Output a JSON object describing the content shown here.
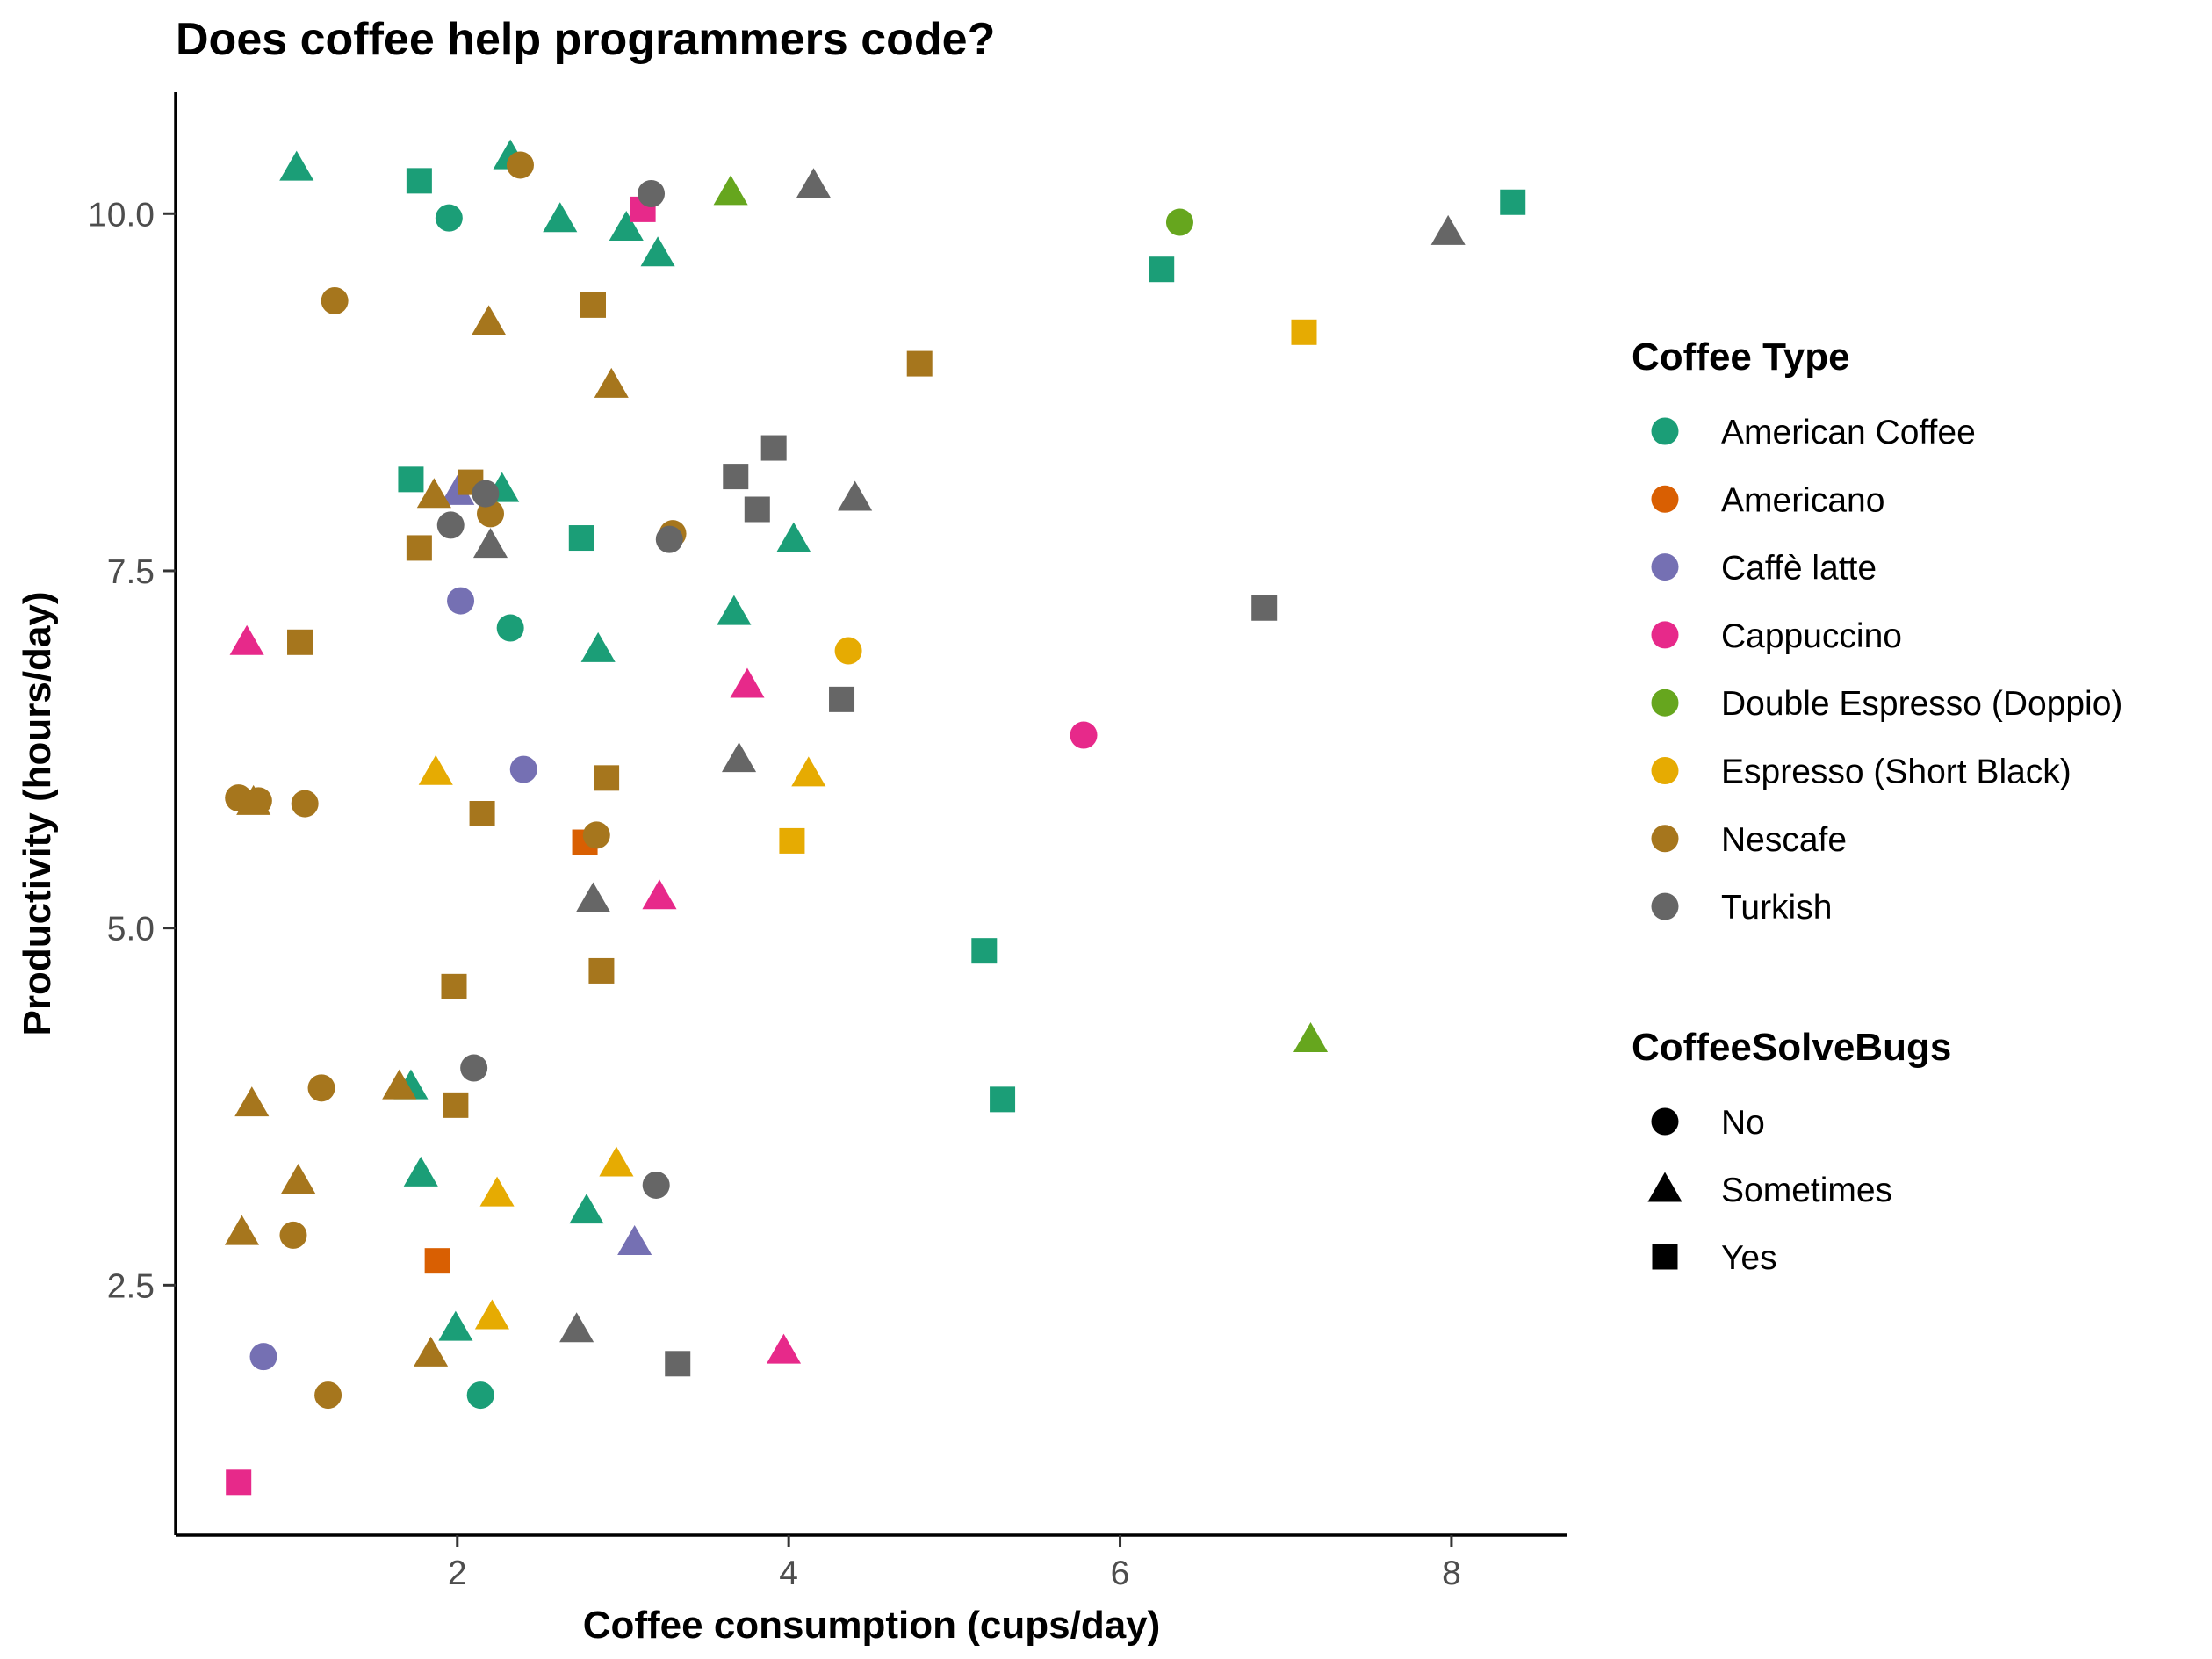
{
  "chart_data": {
    "type": "scatter",
    "title": "Does coffee help programmers code?",
    "xlabel": "Coffee consumption (cups/day)",
    "ylabel": "Productivity (hours/day)",
    "xlim": [
      0.3,
      8.7
    ],
    "ylim": [
      0.75,
      10.85
    ],
    "x_ticks": [
      {
        "value": 2,
        "label": "2"
      },
      {
        "value": 4,
        "label": "4"
      },
      {
        "value": 6,
        "label": "6"
      },
      {
        "value": 8,
        "label": "8"
      }
    ],
    "y_ticks": [
      {
        "value": 2.5,
        "label": "2.5"
      },
      {
        "value": 5.0,
        "label": "5.0"
      },
      {
        "value": 7.5,
        "label": "7.5"
      },
      {
        "value": 10.0,
        "label": "10.0"
      }
    ],
    "grid": false,
    "legend_placement": "right",
    "color_legend": {
      "title": "Coffee Type",
      "entries": [
        {
          "name": "American Coffee",
          "color": "#1b9e77"
        },
        {
          "name": "Americano",
          "color": "#d95f02"
        },
        {
          "name": "Caffè latte",
          "color": "#7570b3"
        },
        {
          "name": "Cappuccino",
          "color": "#e7298a"
        },
        {
          "name": "Double Espresso (Doppio)",
          "color": "#66a61e"
        },
        {
          "name": "Espresso (Short Black)",
          "color": "#e6ab02"
        },
        {
          "name": "Nescafe",
          "color": "#a6761d"
        },
        {
          "name": "Turkish",
          "color": "#666666"
        }
      ]
    },
    "shape_legend": {
      "title": "CoffeeSolveBugs",
      "entries": [
        {
          "name": "No",
          "shape": "circle"
        },
        {
          "name": "Sometimes",
          "shape": "triangle"
        },
        {
          "name": "Yes",
          "shape": "square"
        }
      ]
    },
    "series": [
      {
        "name": "American Coffee",
        "points": [
          [
            1.95,
            9.97,
            "No"
          ],
          [
            2.32,
            7.1,
            "No"
          ],
          [
            2.14,
            1.73,
            "No"
          ],
          [
            1.03,
            10.32,
            "Sometimes"
          ],
          [
            2.32,
            10.4,
            "Sometimes"
          ],
          [
            2.62,
            9.96,
            "Sometimes"
          ],
          [
            3.02,
            9.9,
            "Sometimes"
          ],
          [
            3.21,
            9.72,
            "Sometimes"
          ],
          [
            2.27,
            8.07,
            "Sometimes"
          ],
          [
            4.03,
            7.72,
            "Sometimes"
          ],
          [
            3.67,
            7.21,
            "Sometimes"
          ],
          [
            2.85,
            6.95,
            "Sometimes"
          ],
          [
            1.72,
            3.89,
            "Sometimes"
          ],
          [
            1.78,
            3.28,
            "Sometimes"
          ],
          [
            2.78,
            3.02,
            "Sometimes"
          ],
          [
            1.99,
            2.2,
            "Sometimes"
          ],
          [
            1.77,
            10.23,
            "Yes"
          ],
          [
            1.72,
            8.14,
            "Yes"
          ],
          [
            2.75,
            7.73,
            "Yes"
          ],
          [
            8.37,
            10.08,
            "Yes"
          ],
          [
            6.25,
            9.61,
            "Yes"
          ],
          [
            5.18,
            4.84,
            "Yes"
          ],
          [
            5.29,
            3.8,
            "Yes"
          ]
        ]
      },
      {
        "name": "Americano",
        "points": [
          [
            2.77,
            5.6,
            "Yes"
          ],
          [
            1.88,
            2.67,
            "Yes"
          ]
        ]
      },
      {
        "name": "Caffè latte",
        "points": [
          [
            2.02,
            7.29,
            "No"
          ],
          [
            2.4,
            6.11,
            "No"
          ],
          [
            0.83,
            2.0,
            "No"
          ],
          [
            2.0,
            8.05,
            "Sometimes"
          ],
          [
            3.07,
            2.8,
            "Sometimes"
          ]
        ]
      },
      {
        "name": "Cappuccino",
        "points": [
          [
            5.78,
            6.35,
            "No"
          ],
          [
            0.73,
            7.0,
            "Sometimes"
          ],
          [
            3.75,
            6.7,
            "Sometimes"
          ],
          [
            3.22,
            5.22,
            "Sometimes"
          ],
          [
            3.97,
            2.04,
            "Sometimes"
          ],
          [
            3.12,
            10.03,
            "Yes"
          ],
          [
            0.68,
            1.12,
            "Yes"
          ]
        ]
      },
      {
        "name": "Double Espresso (Doppio)",
        "points": [
          [
            6.36,
            9.94,
            "No"
          ],
          [
            3.65,
            10.15,
            "Sometimes"
          ],
          [
            7.15,
            4.22,
            "Sometimes"
          ]
        ]
      },
      {
        "name": "Espresso (Short Black)",
        "points": [
          [
            4.36,
            6.94,
            "No"
          ],
          [
            1.87,
            6.09,
            "Sometimes"
          ],
          [
            4.12,
            6.08,
            "Sometimes"
          ],
          [
            2.96,
            3.35,
            "Sometimes"
          ],
          [
            2.24,
            3.14,
            "Sometimes"
          ],
          [
            2.21,
            2.28,
            "Sometimes"
          ],
          [
            7.11,
            9.17,
            "Yes"
          ],
          [
            4.02,
            5.61,
            "Yes"
          ]
        ]
      },
      {
        "name": "Nescafe",
        "points": [
          [
            2.38,
            10.34,
            "No"
          ],
          [
            1.26,
            9.39,
            "No"
          ],
          [
            2.2,
            7.9,
            "No"
          ],
          [
            3.3,
            7.76,
            "No"
          ],
          [
            0.68,
            5.91,
            "No"
          ],
          [
            0.8,
            5.89,
            "No"
          ],
          [
            1.08,
            5.87,
            "No"
          ],
          [
            2.84,
            5.65,
            "No"
          ],
          [
            1.18,
            3.88,
            "No"
          ],
          [
            1.01,
            2.85,
            "No"
          ],
          [
            1.22,
            1.73,
            "No"
          ],
          [
            2.19,
            9.24,
            "Sometimes"
          ],
          [
            2.93,
            8.8,
            "Sometimes"
          ],
          [
            1.86,
            8.03,
            "Sometimes"
          ],
          [
            0.77,
            5.88,
            "Sometimes"
          ],
          [
            1.65,
            3.89,
            "Sometimes"
          ],
          [
            0.76,
            3.77,
            "Sometimes"
          ],
          [
            1.04,
            3.23,
            "Sometimes"
          ],
          [
            0.7,
            2.87,
            "Sometimes"
          ],
          [
            1.84,
            2.02,
            "Sometimes"
          ],
          [
            2.82,
            9.36,
            "Yes"
          ],
          [
            4.79,
            8.95,
            "Yes"
          ],
          [
            2.08,
            8.12,
            "Yes"
          ],
          [
            1.77,
            7.66,
            "Yes"
          ],
          [
            1.05,
            7.0,
            "Yes"
          ],
          [
            2.9,
            6.05,
            "Yes"
          ],
          [
            2.15,
            5.8,
            "Yes"
          ],
          [
            1.98,
            4.59,
            "Yes"
          ],
          [
            2.87,
            4.7,
            "Yes"
          ],
          [
            1.99,
            3.76,
            "Yes"
          ]
        ]
      },
      {
        "name": "Turkish",
        "points": [
          [
            3.17,
            10.14,
            "No"
          ],
          [
            2.17,
            8.04,
            "No"
          ],
          [
            1.96,
            7.82,
            "No"
          ],
          [
            3.28,
            7.72,
            "No"
          ],
          [
            2.1,
            4.02,
            "No"
          ],
          [
            3.2,
            3.2,
            "No"
          ],
          [
            4.15,
            10.2,
            "Sometimes"
          ],
          [
            7.98,
            9.87,
            "Sometimes"
          ],
          [
            4.4,
            8.01,
            "Sometimes"
          ],
          [
            2.2,
            7.68,
            "Sometimes"
          ],
          [
            3.7,
            6.18,
            "Sometimes"
          ],
          [
            2.82,
            5.2,
            "Sometimes"
          ],
          [
            2.72,
            2.19,
            "Sometimes"
          ],
          [
            3.91,
            8.36,
            "Yes"
          ],
          [
            3.68,
            8.16,
            "Yes"
          ],
          [
            3.81,
            7.93,
            "Yes"
          ],
          [
            6.87,
            7.24,
            "Yes"
          ],
          [
            4.32,
            6.6,
            "Yes"
          ],
          [
            3.33,
            1.95,
            "Yes"
          ]
        ]
      }
    ]
  }
}
